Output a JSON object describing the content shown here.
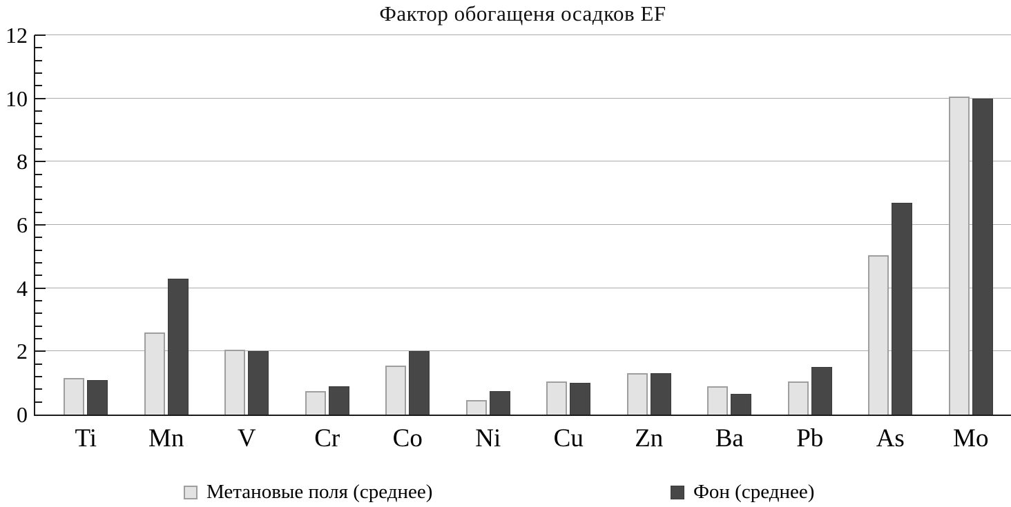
{
  "title": "Фактор обогащеня осадков EF",
  "colors": {
    "series1_fill": "#e3e3e3",
    "series1_border": "#9e9e9e",
    "series2_fill": "#474747",
    "series2_border": "#3a3a3a",
    "gridline": "#ababab",
    "axis": "#1a1a1a",
    "background": "#ffffff",
    "text": "#000000"
  },
  "chart_data": {
    "type": "bar",
    "title": "Фактор обогащеня осадков EF",
    "categories": [
      "Ti",
      "Mn",
      "V",
      "Cr",
      "Co",
      "Ni",
      "Cu",
      "Zn",
      "Ba",
      "Pb",
      "As",
      "Mo"
    ],
    "series": [
      {
        "name": "Метановые поля (среднее)",
        "values": [
          1.15,
          2.6,
          2.05,
          0.75,
          1.55,
          0.45,
          1.05,
          1.3,
          0.9,
          1.05,
          5.05,
          10.05
        ]
      },
      {
        "name": "Фон (среднее)",
        "values": [
          1.1,
          4.3,
          2.0,
          0.9,
          2.0,
          0.75,
          1.0,
          1.3,
          0.65,
          1.5,
          6.7,
          10.0
        ]
      }
    ],
    "xlabel": "",
    "ylabel": "",
    "ylim": [
      0,
      12
    ],
    "y_major_ticks": [
      0,
      2,
      4,
      6,
      8,
      10,
      12
    ],
    "y_minor_step": 0.4,
    "grid": "horizontal",
    "legend_position": "bottom"
  },
  "legend": {
    "items": [
      {
        "label": "Метановые поля (среднее)",
        "swatch": "light"
      },
      {
        "label": "Фон (среднее)",
        "swatch": "dark"
      }
    ]
  }
}
